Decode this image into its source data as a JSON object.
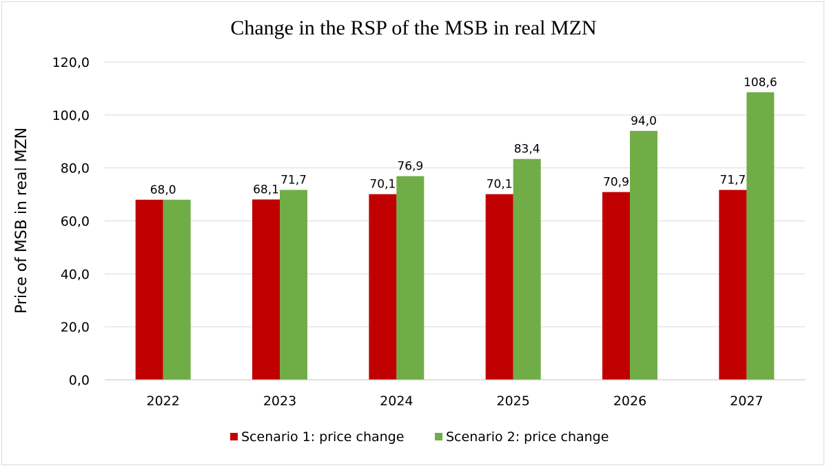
{
  "chart_data": {
    "type": "bar",
    "title": "Change in the RSP of the MSB in real MZN",
    "xlabel": "",
    "ylabel": "Price of MSB in real MZN",
    "ylim": [
      0,
      120
    ],
    "yticks": [
      "0,0",
      "20,0",
      "40,0",
      "60,0",
      "80,0",
      "100,0",
      "120,0"
    ],
    "ytick_values": [
      0,
      20,
      40,
      60,
      80,
      100,
      120
    ],
    "grid": true,
    "legend_position": "bottom",
    "categories": [
      "2022",
      "2023",
      "2024",
      "2025",
      "2026",
      "2027"
    ],
    "series": [
      {
        "name": "Scenario 1: price change",
        "color": "#c00000",
        "values": [
          68.0,
          68.1,
          70.1,
          70.1,
          70.9,
          71.7
        ],
        "labels": [
          null,
          "68,1",
          "70,1",
          "70,1",
          "70,9",
          "71,7"
        ]
      },
      {
        "name": "Scenario 2: price change",
        "color": "#70ad47",
        "values": [
          68.0,
          71.7,
          76.9,
          83.4,
          94.0,
          108.6
        ],
        "labels": [
          "68,0",
          "71,7",
          "76,9",
          "83,4",
          "94,0",
          "108,6"
        ]
      }
    ]
  }
}
